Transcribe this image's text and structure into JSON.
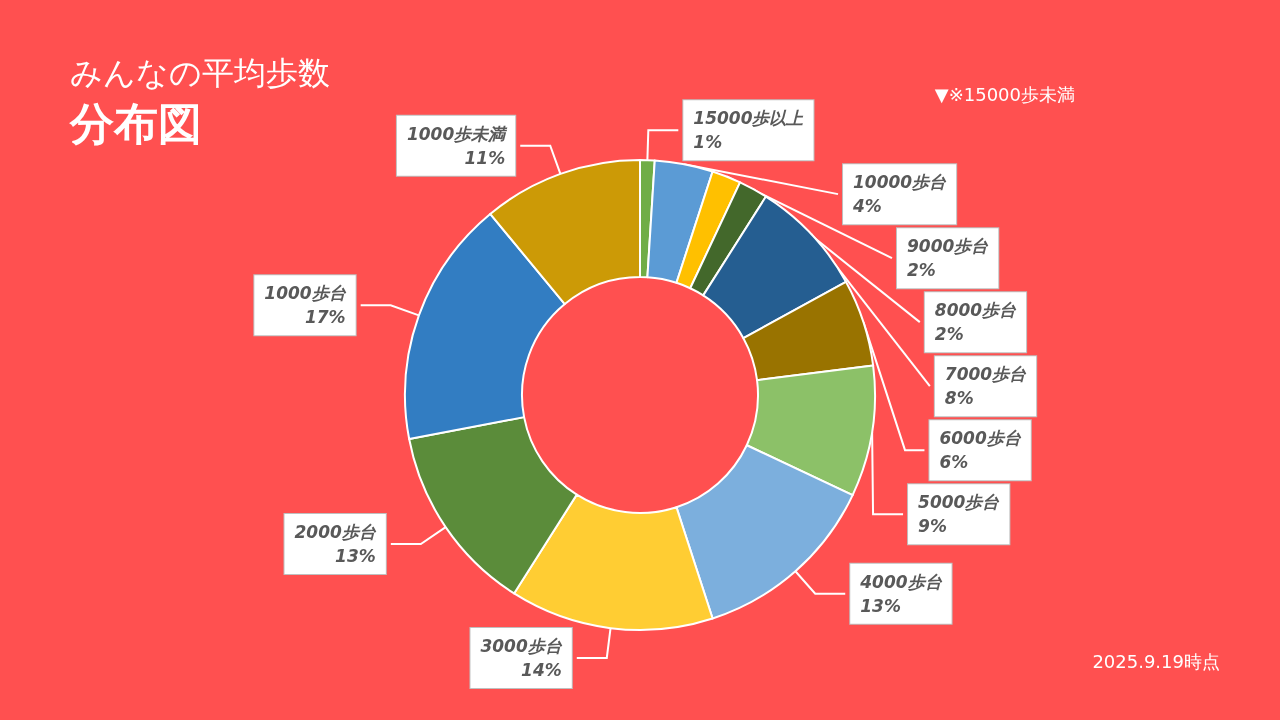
{
  "chart_data": {
    "type": "donut",
    "title": "みんなの平均歩数",
    "subtitle": "分布図",
    "categories": [
      "15000歩以上",
      "10000歩台",
      "9000歩台",
      "8000歩台",
      "7000歩台",
      "6000歩台",
      "5000歩台",
      "4000歩台",
      "3000歩台",
      "2000歩台",
      "1000歩台",
      "1000歩未満"
    ],
    "values": [
      1,
      4,
      2,
      2,
      8,
      6,
      9,
      13,
      14,
      13,
      17,
      11
    ],
    "value_labels": [
      "1%",
      "4%",
      "2%",
      "2%",
      "8%",
      "6%",
      "9%",
      "13%",
      "14%",
      "13%",
      "17%",
      "11%"
    ],
    "colors": [
      "#70ad47",
      "#5b9bd5",
      "#ffc000",
      "#43682b",
      "#255e91",
      "#997300",
      "#8cc168",
      "#7cafdd",
      "#ffcd33",
      "#5b8c3a",
      "#327dc2",
      "#cc9a06"
    ],
    "annotations": [
      "▼※15000歩未満",
      "2025.9.19時点"
    ]
  }
}
